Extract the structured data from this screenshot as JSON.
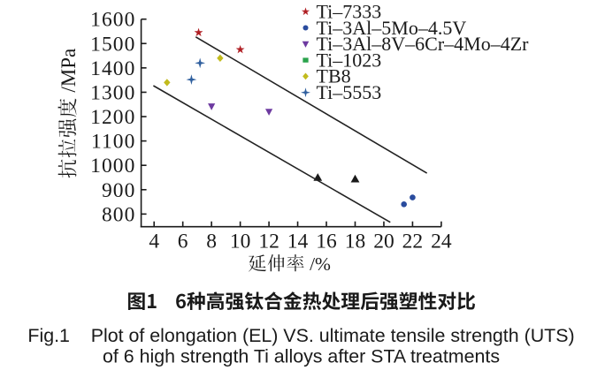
{
  "figure": {
    "background": "#ffffff",
    "text_color": "#1a1a1a",
    "caption_zh": {
      "label": "图1",
      "text": "6种高强钛合金热处理后强塑性对比"
    },
    "caption_en": {
      "label": "Fig.1",
      "line1": "Plot of elongation (EL) VS. ultimate tensile strength (UTS)",
      "line2": "of 6 high strength Ti alloys after STA treatments"
    }
  },
  "chart_data": {
    "type": "scatter",
    "title": "图1 6种高强钛合金热处理后强塑性对比",
    "xlabel": "延伸率 /%",
    "ylabel": "抗拉强度 /MPa",
    "xlim": [
      3.1,
      24
    ],
    "ylim": [
      748,
      1600
    ],
    "xticks": [
      4,
      6,
      8,
      10,
      12,
      14,
      16,
      18,
      20,
      22,
      24
    ],
    "yticks": [
      800,
      900,
      1000,
      1100,
      1200,
      1300,
      1400,
      1500,
      1600
    ],
    "grid": false,
    "legend_position": "upper-right",
    "axis_color": "#1a1a1a",
    "series": [
      {
        "name": "Ti–7333",
        "marker": "star",
        "color": "#b01f24",
        "points": [
          [
            7.1,
            1545
          ],
          [
            10.0,
            1475
          ]
        ]
      },
      {
        "name": "Ti–3Al–5Mo–4.5V",
        "marker": "circle",
        "color": "#2a4c9e",
        "points": [
          [
            21.4,
            840
          ],
          [
            22.0,
            868
          ]
        ]
      },
      {
        "name": "Ti–3Al–8V–6Cr–4Mo–4Zr",
        "marker": "triangle-down",
        "color": "#6d3aa0",
        "points": [
          [
            8.0,
            1242
          ],
          [
            12.0,
            1220
          ]
        ]
      },
      {
        "name": "Ti–1023",
        "marker": "square",
        "color": "#2aa34c",
        "plot_marker": "triangle-up",
        "plot_color": "#1a1a1a",
        "points": [
          [
            15.4,
            950
          ],
          [
            18.0,
            944
          ]
        ]
      },
      {
        "name": "TB8",
        "marker": "diamond",
        "color": "#c2bb1e",
        "points": [
          [
            4.9,
            1340
          ],
          [
            8.6,
            1440
          ]
        ]
      },
      {
        "name": "Ti–5553",
        "marker": "plus",
        "color": "#2f5f9e",
        "points": [
          [
            6.6,
            1352
          ],
          [
            7.2,
            1420
          ]
        ]
      }
    ],
    "trend_lines": [
      {
        "x1": 6.9,
        "y1": 1527,
        "x2": 23.0,
        "y2": 968,
        "color": "#222222"
      },
      {
        "x1": 3.95,
        "y1": 1327,
        "x2": 20.45,
        "y2": 766,
        "color": "#222222"
      }
    ]
  }
}
